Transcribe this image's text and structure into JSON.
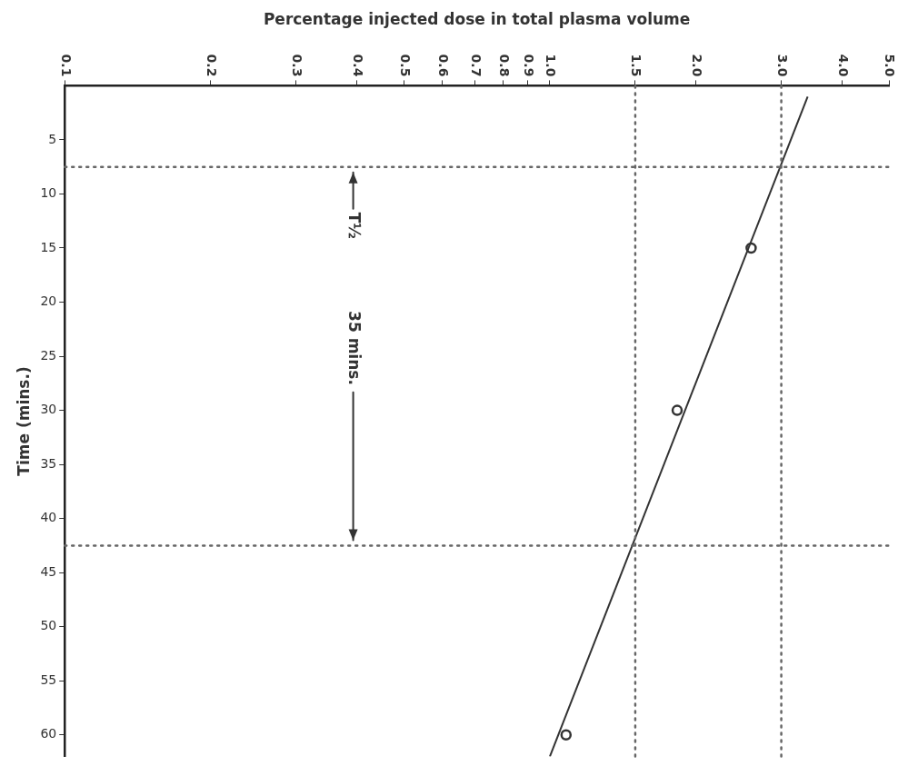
{
  "chart_data": {
    "type": "scatter",
    "xlabel": "Percentage injected dose in total plasma volume",
    "ylabel": "Time (mins.)",
    "series": [
      {
        "color": "#333333",
        "x": [
          2.6,
          1.83,
          1.08
        ],
        "values": [
          15,
          30,
          60
        ],
        "marker": "circle"
      },
      {
        "type": "line",
        "color": "#333333",
        "x": [
          3.4,
          1.0
        ],
        "values": [
          1,
          62
        ],
        "marker": "none",
        "line_style": "solid"
      }
    ],
    "log": "x",
    "xlim": [
      0.1,
      5.0
    ],
    "xticks": [
      0.1,
      0.2,
      0.3,
      0.4,
      0.5,
      0.6,
      0.7,
      0.8,
      0.9,
      {
        "value": 1,
        "label": "1.0"
      },
      1.5,
      {
        "value": 2,
        "label": "2.0"
      },
      {
        "value": 3,
        "label": "3.0"
      },
      {
        "value": 4,
        "label": "4.0"
      },
      {
        "value": 5,
        "label": "5.0"
      }
    ],
    "ylim": [
      62,
      0
    ],
    "yticks": [
      5,
      10,
      15,
      20,
      25,
      30,
      35,
      40,
      45,
      50,
      55,
      60
    ],
    "grid": false,
    "legend": false,
    "ref_lines": [
      {
        "axis": "y",
        "value": 7.5,
        "color": "#666666",
        "line_style": "dotted"
      },
      {
        "axis": "y",
        "value": 42.5,
        "color": "#666666",
        "line_style": "dotted"
      },
      {
        "axis": "x",
        "value": 3.0,
        "color": "#666666",
        "line_style": "dotted"
      },
      {
        "axis": "x",
        "value": 1.5,
        "color": "#666666",
        "line_style": "dotted"
      }
    ],
    "annotations": [
      "T½",
      "35 mins."
    ]
  }
}
